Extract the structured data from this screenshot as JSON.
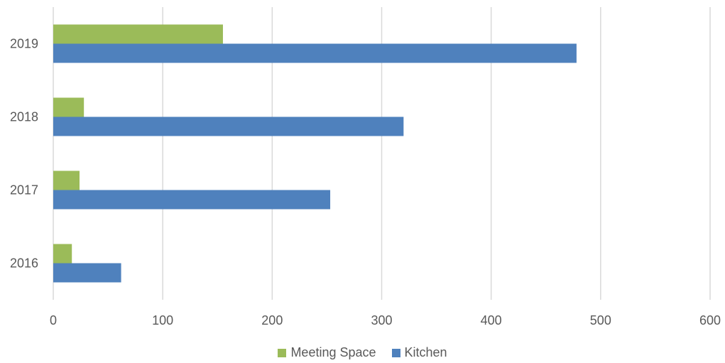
{
  "chart_data": {
    "type": "bar",
    "orientation": "horizontal",
    "categories": [
      "2016",
      "2017",
      "2018",
      "2019"
    ],
    "series": [
      {
        "name": "Meeting Space",
        "color": "#9bbb59",
        "values": [
          17,
          24,
          28,
          155
        ]
      },
      {
        "name": "Kitchen",
        "color": "#4f81bd",
        "values": [
          62,
          253,
          320,
          478
        ]
      }
    ],
    "xlim": [
      0,
      600
    ],
    "x_ticks": [
      "0",
      "100",
      "200",
      "300",
      "400",
      "500",
      "600"
    ],
    "grid": true,
    "legend_position": "bottom",
    "title": "",
    "xlabel": "",
    "ylabel": ""
  }
}
